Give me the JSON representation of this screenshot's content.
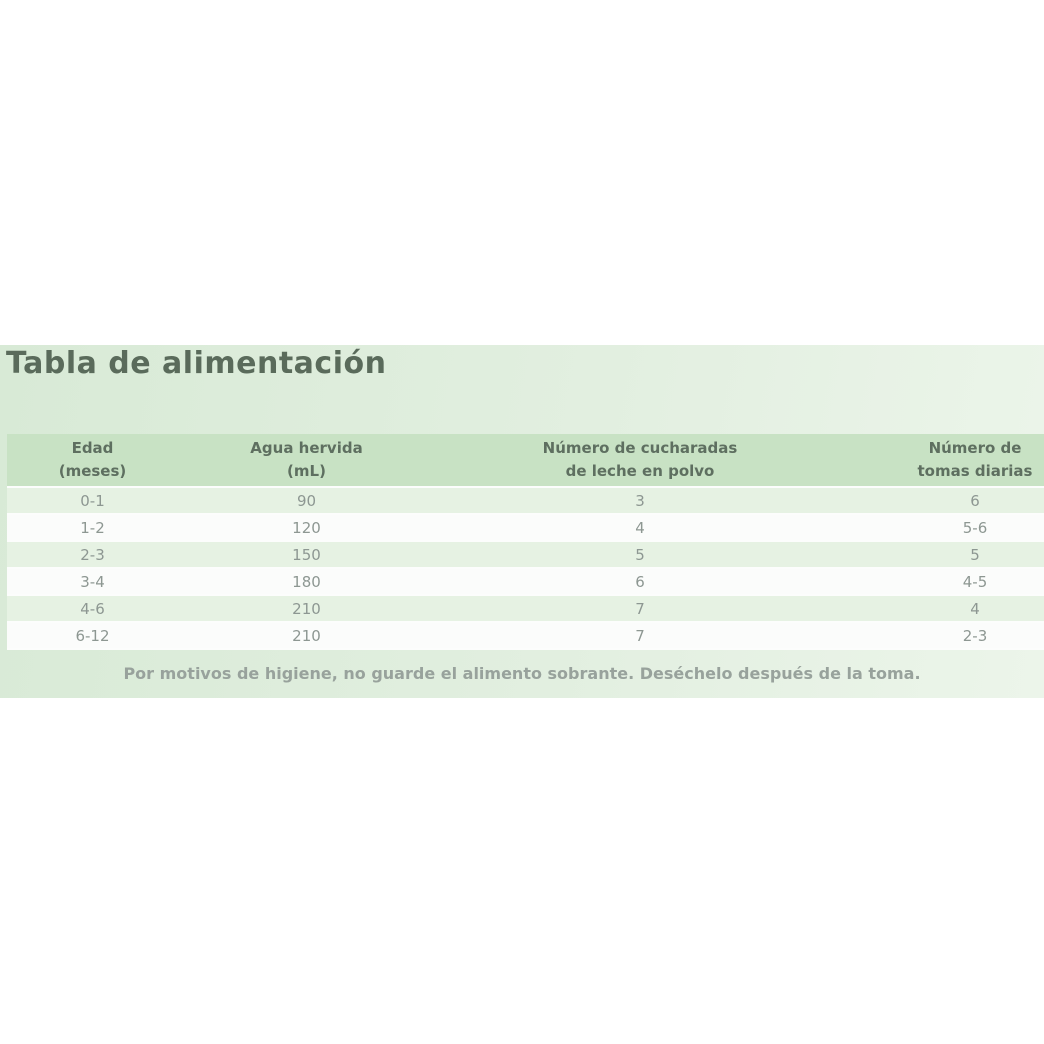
{
  "panel": {
    "title": "Tabla de alimentación",
    "footer_note": "Por motivos de higiene, no guarde el alimento sobrante. Deséchelo después de la toma."
  },
  "table": {
    "headers": [
      {
        "line1": "Edad",
        "line2": "(meses)"
      },
      {
        "line1": "Agua hervida",
        "line2": "(mL)"
      },
      {
        "line1": "Número de cucharadas",
        "line2": "de leche en polvo"
      },
      {
        "line1": "Número de",
        "line2": "tomas diarias"
      }
    ],
    "rows": [
      {
        "edad": "0-1",
        "agua_ml": "90",
        "cucharadas": "3",
        "tomas": "6"
      },
      {
        "edad": "1-2",
        "agua_ml": "120",
        "cucharadas": "4",
        "tomas": "5-6"
      },
      {
        "edad": "2-3",
        "agua_ml": "150",
        "cucharadas": "5",
        "tomas": "5"
      },
      {
        "edad": "3-4",
        "agua_ml": "180",
        "cucharadas": "6",
        "tomas": "4-5"
      },
      {
        "edad": "4-6",
        "agua_ml": "210",
        "cucharadas": "7",
        "tomas": "4"
      },
      {
        "edad": "6-12",
        "agua_ml": "210",
        "cucharadas": "7",
        "tomas": "2-3"
      }
    ]
  },
  "colors": {
    "panel_gradient_start": "#d8ead6",
    "panel_gradient_end": "#ecf5ea",
    "header_bg": "#c8e2c4",
    "row_green": "#e6f2e3",
    "row_white": "#fbfcfb",
    "title_text": "#5a6b5b",
    "header_text": "#5e6f60",
    "cell_text": "#8d9792",
    "footer_text": "#98a29c"
  }
}
